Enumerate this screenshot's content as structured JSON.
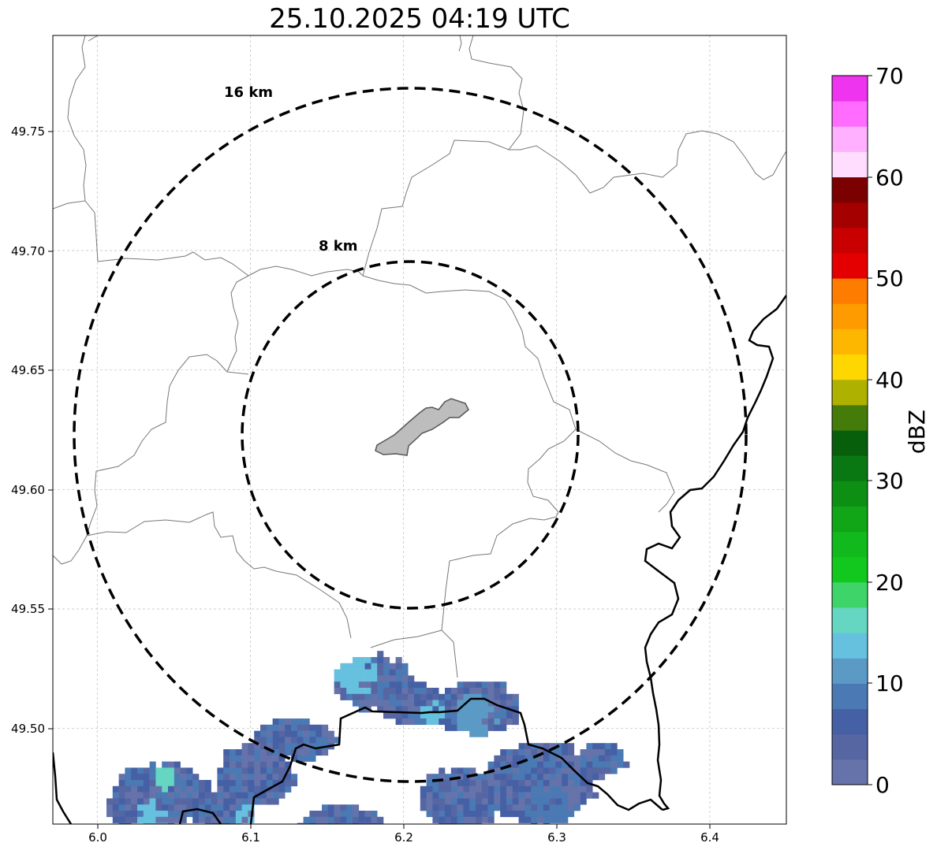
{
  "title": "25.10.2025 04:19 UTC",
  "map": {
    "x_ticks": [
      "6.0",
      "6.1",
      "6.2",
      "6.3",
      "6.4"
    ],
    "y_ticks": [
      "49.75",
      "49.70",
      "49.65",
      "49.60",
      "49.55",
      "49.50"
    ],
    "x_tick_values": [
      6.0,
      6.1,
      6.2,
      6.3,
      6.4
    ],
    "y_tick_values": [
      49.75,
      49.7,
      49.65,
      49.6,
      49.55,
      49.5
    ],
    "xlim": [
      5.971,
      6.45
    ],
    "ylim": [
      49.46,
      49.79
    ],
    "grid": true,
    "rings": [
      {
        "label": "16 km",
        "radius_km": 16
      },
      {
        "label": "8 km",
        "radius_km": 8
      }
    ],
    "colors": {
      "ring": "#000000",
      "admin_border": "#777777",
      "country_border": "#000000",
      "city_fill": "#bdbdbd",
      "city_stroke": "#555555"
    }
  },
  "colorbar": {
    "label": "dBZ",
    "ticks": [
      "0",
      "10",
      "20",
      "30",
      "40",
      "50",
      "60",
      "70"
    ],
    "min": 0,
    "max": 70,
    "step": 2.5,
    "colors": [
      "#6673aa",
      "#5566a3",
      "#4660a5",
      "#4a79b3",
      "#5a9ac5",
      "#66c1df",
      "#64d6c2",
      "#3ed46a",
      "#12c81e",
      "#12b91c",
      "#10a618",
      "#0d8f14",
      "#0a7812",
      "#075f0c",
      "#457b08",
      "#aeb100",
      "#fed700",
      "#feb700",
      "#fe9b00",
      "#fe7d00",
      "#e40000",
      "#c80000",
      "#a40000",
      "#7b0000",
      "#ffddff",
      "#ffb0ff",
      "#ff6cff",
      "#ee34ee"
    ]
  }
}
